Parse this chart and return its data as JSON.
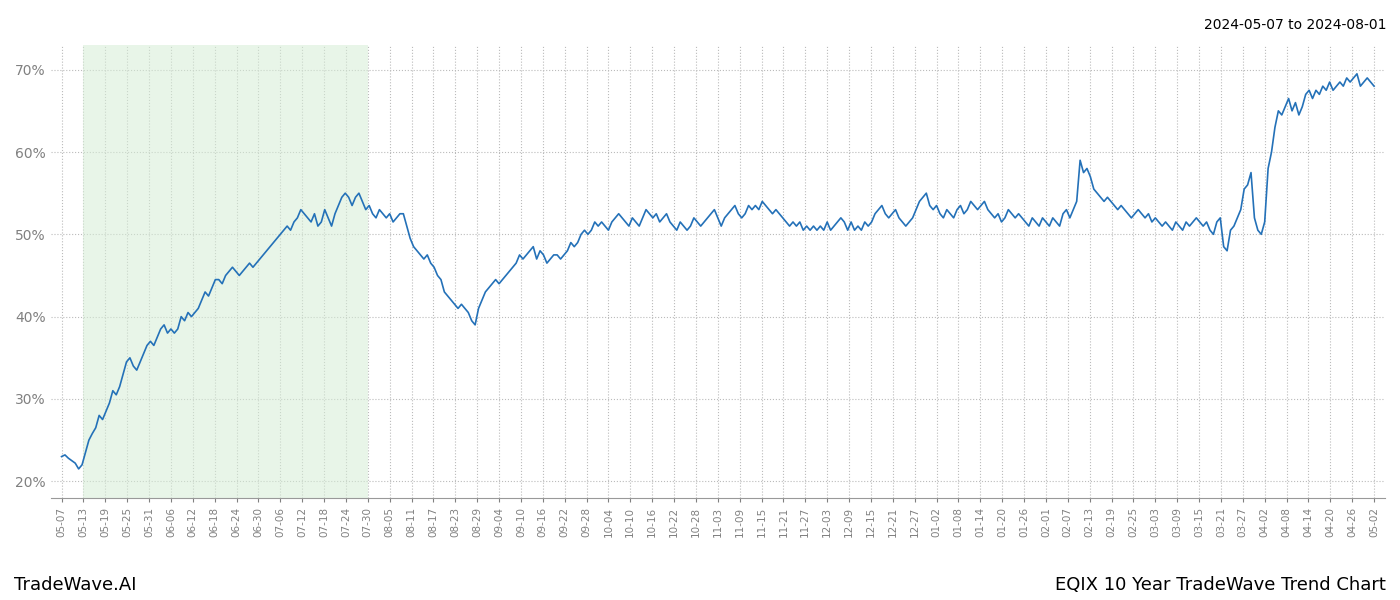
{
  "title_top_right": "2024-05-07 to 2024-08-01",
  "bottom_left": "TradeWave.AI",
  "bottom_right": "EQIX 10 Year TradeWave Trend Chart",
  "line_color": "#2471b8",
  "shade_color": "#d6edd6",
  "shade_alpha": 0.55,
  "ylim": [
    18,
    73
  ],
  "yticks": [
    20,
    30,
    40,
    50,
    60,
    70
  ],
  "shade_start_label": "05-13",
  "shade_end_label": "07-30",
  "x_labels": [
    "05-07",
    "05-13",
    "05-19",
    "05-25",
    "05-31",
    "06-06",
    "06-12",
    "06-18",
    "06-24",
    "06-30",
    "07-06",
    "07-12",
    "07-18",
    "07-24",
    "07-30",
    "08-05",
    "08-11",
    "08-17",
    "08-23",
    "08-29",
    "09-04",
    "09-10",
    "09-16",
    "09-22",
    "09-28",
    "10-04",
    "10-10",
    "10-16",
    "10-22",
    "10-28",
    "11-03",
    "11-09",
    "11-15",
    "11-21",
    "11-27",
    "12-03",
    "12-09",
    "12-15",
    "12-21",
    "12-27",
    "01-02",
    "01-08",
    "01-14",
    "01-20",
    "01-26",
    "02-01",
    "02-07",
    "02-13",
    "02-19",
    "02-25",
    "03-03",
    "03-09",
    "03-15",
    "03-21",
    "03-27",
    "04-02",
    "04-08",
    "04-14",
    "04-20",
    "04-26",
    "05-02"
  ],
  "y_values": [
    23.0,
    23.2,
    22.8,
    22.5,
    22.2,
    21.5,
    22.0,
    23.5,
    25.0,
    25.8,
    26.5,
    28.0,
    27.5,
    28.5,
    29.5,
    31.0,
    30.5,
    31.5,
    33.0,
    34.5,
    35.0,
    34.0,
    33.5,
    34.5,
    35.5,
    36.5,
    37.0,
    36.5,
    37.5,
    38.5,
    39.0,
    38.0,
    38.5,
    38.0,
    38.5,
    40.0,
    39.5,
    40.5,
    40.0,
    40.5,
    41.0,
    42.0,
    43.0,
    42.5,
    43.5,
    44.5,
    44.5,
    44.0,
    45.0,
    45.5,
    46.0,
    45.5,
    45.0,
    45.5,
    46.0,
    46.5,
    46.0,
    46.5,
    47.0,
    47.5,
    48.0,
    48.5,
    49.0,
    49.5,
    50.0,
    50.5,
    51.0,
    50.5,
    51.5,
    52.0,
    53.0,
    52.5,
    52.0,
    51.5,
    52.5,
    51.0,
    51.5,
    53.0,
    52.0,
    51.0,
    52.5,
    53.5,
    54.5,
    55.0,
    54.5,
    53.5,
    54.5,
    55.0,
    54.0,
    53.0,
    53.5,
    52.5,
    52.0,
    53.0,
    52.5,
    52.0,
    52.5,
    51.5,
    52.0,
    52.5,
    52.5,
    51.0,
    49.5,
    48.5,
    48.0,
    47.5,
    47.0,
    47.5,
    46.5,
    46.0,
    45.0,
    44.5,
    43.0,
    42.5,
    42.0,
    41.5,
    41.0,
    41.5,
    41.0,
    40.5,
    39.5,
    39.0,
    41.0,
    42.0,
    43.0,
    43.5,
    44.0,
    44.5,
    44.0,
    44.5,
    45.0,
    45.5,
    46.0,
    46.5,
    47.5,
    47.0,
    47.5,
    48.0,
    48.5,
    47.0,
    48.0,
    47.5,
    46.5,
    47.0,
    47.5,
    47.5,
    47.0,
    47.5,
    48.0,
    49.0,
    48.5,
    49.0,
    50.0,
    50.5,
    50.0,
    50.5,
    51.5,
    51.0,
    51.5,
    51.0,
    50.5,
    51.5,
    52.0,
    52.5,
    52.0,
    51.5,
    51.0,
    52.0,
    51.5,
    51.0,
    52.0,
    53.0,
    52.5,
    52.0,
    52.5,
    51.5,
    52.0,
    52.5,
    51.5,
    51.0,
    50.5,
    51.5,
    51.0,
    50.5,
    51.0,
    52.0,
    51.5,
    51.0,
    51.5,
    52.0,
    52.5,
    53.0,
    52.0,
    51.0,
    52.0,
    52.5,
    53.0,
    53.5,
    52.5,
    52.0,
    52.5,
    53.5,
    53.0,
    53.5,
    53.0,
    54.0,
    53.5,
    53.0,
    52.5,
    53.0,
    52.5,
    52.0,
    51.5,
    51.0,
    51.5,
    51.0,
    51.5,
    50.5,
    51.0,
    50.5,
    51.0,
    50.5,
    51.0,
    50.5,
    51.5,
    50.5,
    51.0,
    51.5,
    52.0,
    51.5,
    50.5,
    51.5,
    50.5,
    51.0,
    50.5,
    51.5,
    51.0,
    51.5,
    52.5,
    53.0,
    53.5,
    52.5,
    52.0,
    52.5,
    53.0,
    52.0,
    51.5,
    51.0,
    51.5,
    52.0,
    53.0,
    54.0,
    54.5,
    55.0,
    53.5,
    53.0,
    53.5,
    52.5,
    52.0,
    53.0,
    52.5,
    52.0,
    53.0,
    53.5,
    52.5,
    53.0,
    54.0,
    53.5,
    53.0,
    53.5,
    54.0,
    53.0,
    52.5,
    52.0,
    52.5,
    51.5,
    52.0,
    53.0,
    52.5,
    52.0,
    52.5,
    52.0,
    51.5,
    51.0,
    52.0,
    51.5,
    51.0,
    52.0,
    51.5,
    51.0,
    52.0,
    51.5,
    51.0,
    52.5,
    53.0,
    52.0,
    53.0,
    54.0,
    59.0,
    57.5,
    58.0,
    57.0,
    55.5,
    55.0,
    54.5,
    54.0,
    54.5,
    54.0,
    53.5,
    53.0,
    53.5,
    53.0,
    52.5,
    52.0,
    52.5,
    53.0,
    52.5,
    52.0,
    52.5,
    51.5,
    52.0,
    51.5,
    51.0,
    51.5,
    51.0,
    50.5,
    51.5,
    51.0,
    50.5,
    51.5,
    51.0,
    51.5,
    52.0,
    51.5,
    51.0,
    51.5,
    50.5,
    50.0,
    51.5,
    52.0,
    48.5,
    48.0,
    50.5,
    51.0,
    52.0,
    53.0,
    55.5,
    56.0,
    57.5,
    52.0,
    50.5,
    50.0,
    51.5,
    58.0,
    60.0,
    63.0,
    65.0,
    64.5,
    65.5,
    66.5,
    65.0,
    66.0,
    64.5,
    65.5,
    67.0,
    67.5,
    66.5,
    67.5,
    67.0,
    68.0,
    67.5,
    68.5,
    67.5,
    68.0,
    68.5,
    68.0,
    69.0,
    68.5,
    69.0,
    69.5,
    68.0,
    68.5,
    69.0,
    68.5,
    68.0
  ]
}
